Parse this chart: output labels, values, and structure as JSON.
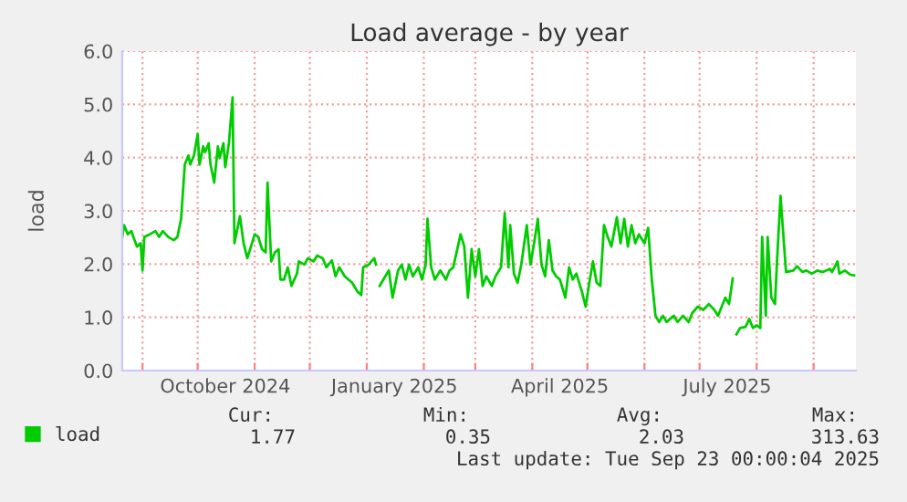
{
  "chart_data": {
    "type": "line",
    "title": "Load average - by year",
    "ylabel": "load",
    "x": [
      "2024-08-21",
      "2024-08-22",
      "2024-08-24",
      "2024-08-26",
      "2024-08-27",
      "2024-08-29",
      "2024-08-31",
      "2024-09-01",
      "2024-09-02",
      "2024-09-05",
      "2024-09-08",
      "2024-09-10",
      "2024-09-12",
      "2024-09-15",
      "2024-09-18",
      "2024-09-20",
      "2024-09-22",
      "2024-09-24",
      "2024-09-26",
      "2024-09-27",
      "2024-09-29",
      "2024-10-01",
      "2024-10-02",
      "2024-10-04",
      "2024-10-05",
      "2024-10-07",
      "2024-10-08",
      "2024-10-10",
      "2024-10-12",
      "2024-10-13",
      "2024-10-15",
      "2024-10-16",
      "2024-10-18",
      "2024-10-20",
      "2024-10-21",
      "2024-10-24",
      "2024-10-26",
      "2024-10-28",
      "2024-10-30",
      "2024-11-01",
      "2024-11-03",
      "2024-11-05",
      "2024-11-07",
      "2024-11-08",
      "2024-11-10",
      "2024-11-12",
      "2024-11-14",
      "2024-11-15",
      "2024-11-17",
      "2024-11-19",
      "2024-11-21",
      "2024-11-24",
      "2024-11-25",
      "2024-11-28",
      "2024-11-30",
      "2024-12-03",
      "2024-12-05",
      "2024-12-08",
      "2024-12-10",
      "2024-12-13",
      "2024-12-15",
      "2024-12-17",
      "2024-12-20",
      "2024-12-24",
      "2024-12-27",
      "2024-12-29",
      "2024-12-30",
      "2025-01-02",
      "2025-01-05",
      "2025-01-06",
      "2025-01-07",
      "2025-01-08",
      "2025-01-10",
      "2025-01-13",
      "2025-01-15",
      "2025-01-18",
      "2025-01-20",
      "2025-01-22",
      "2025-01-24",
      "2025-01-26",
      "2025-01-29",
      "2025-01-31",
      "2025-02-02",
      "2025-02-03",
      "2025-02-05",
      "2025-02-07",
      "2025-02-10",
      "2025-02-13",
      "2025-02-15",
      "2025-02-17",
      "2025-02-21",
      "2025-02-23",
      "2025-02-25",
      "2025-02-27",
      "2025-03-01",
      "2025-03-03",
      "2025-03-05",
      "2025-03-07",
      "2025-03-10",
      "2025-03-12",
      "2025-03-15",
      "2025-03-17",
      "2025-03-19",
      "2025-03-20",
      "2025-03-22",
      "2025-03-24",
      "2025-03-26",
      "2025-03-29",
      "2025-03-31",
      "2025-04-02",
      "2025-04-04",
      "2025-04-06",
      "2025-04-08",
      "2025-04-10",
      "2025-04-12",
      "2025-04-14",
      "2025-04-16",
      "2025-04-19",
      "2025-04-21",
      "2025-04-23",
      "2025-04-25",
      "2025-04-28",
      "2025-04-30",
      "2025-05-02",
      "2025-05-04",
      "2025-05-06",
      "2025-05-08",
      "2025-05-10",
      "2025-05-12",
      "2025-05-14",
      "2025-05-17",
      "2025-05-19",
      "2025-05-21",
      "2025-05-23",
      "2025-05-25",
      "2025-05-27",
      "2025-05-29",
      "2025-06-01",
      "2025-06-03",
      "2025-06-05",
      "2025-06-07",
      "2025-06-09",
      "2025-06-11",
      "2025-06-13",
      "2025-06-17",
      "2025-06-19",
      "2025-06-22",
      "2025-06-25",
      "2025-06-27",
      "2025-06-30",
      "2025-07-03",
      "2025-07-06",
      "2025-07-09",
      "2025-07-11",
      "2025-07-13",
      "2025-07-15",
      "2025-07-17",
      "2025-07-19",
      "2025-07-20",
      "2025-07-21",
      "2025-07-23",
      "2025-07-26",
      "2025-07-28",
      "2025-07-30",
      "2025-08-01",
      "2025-08-03",
      "2025-08-04",
      "2025-08-06",
      "2025-08-07",
      "2025-08-09",
      "2025-08-11",
      "2025-08-12",
      "2025-08-14",
      "2025-08-17",
      "2025-08-21",
      "2025-08-23",
      "2025-08-26",
      "2025-08-28",
      "2025-08-31",
      "2025-09-03",
      "2025-09-06",
      "2025-09-10",
      "2025-09-11",
      "2025-09-14",
      "2025-09-15",
      "2025-09-18",
      "2025-09-21",
      "2025-09-23"
    ],
    "series": [
      {
        "name": "load",
        "color": "#00cc00",
        "values": [
          2.51,
          2.73,
          2.56,
          2.62,
          2.51,
          2.33,
          2.39,
          1.88,
          2.51,
          2.56,
          2.62,
          2.51,
          2.62,
          2.51,
          2.45,
          2.51,
          2.85,
          3.87,
          4.04,
          3.87,
          4.04,
          4.44,
          3.87,
          4.21,
          4.1,
          4.27,
          3.87,
          3.53,
          4.21,
          3.99,
          4.27,
          3.82,
          4.27,
          5.13,
          2.39,
          2.9,
          2.39,
          2.11,
          2.33,
          2.56,
          2.51,
          2.28,
          2.22,
          3.53,
          2.05,
          2.22,
          2.28,
          1.71,
          1.71,
          1.94,
          1.59,
          1.82,
          2.05,
          1.99,
          2.11,
          2.05,
          2.16,
          2.11,
          1.94,
          2.07,
          1.77,
          1.94,
          1.77,
          1.65,
          1.48,
          1.42,
          1.94,
          1.99,
          2.11,
          1.99,
          null,
          1.59,
          1.71,
          1.88,
          1.37,
          1.88,
          1.99,
          1.71,
          1.99,
          1.77,
          1.94,
          1.71,
          1.99,
          2.85,
          1.94,
          1.71,
          1.88,
          1.71,
          1.88,
          1.94,
          2.56,
          2.33,
          1.37,
          2.28,
          1.77,
          2.28,
          1.59,
          1.77,
          1.59,
          1.77,
          1.94,
          2.96,
          1.94,
          2.73,
          1.82,
          1.65,
          1.99,
          2.73,
          1.99,
          2.39,
          2.85,
          1.99,
          1.77,
          2.45,
          1.88,
          1.77,
          1.71,
          1.37,
          1.94,
          1.71,
          1.82,
          1.48,
          1.2,
          1.65,
          2.05,
          1.65,
          1.59,
          2.73,
          2.51,
          2.33,
          2.88,
          2.39,
          2.85,
          2.33,
          2.73,
          2.39,
          2.56,
          2.39,
          2.68,
          1.71,
          1.03,
          0.91,
          1.03,
          0.91,
          1.03,
          0.91,
          1.03,
          0.91,
          1.08,
          1.2,
          1.14,
          1.25,
          1.14,
          1.03,
          1.2,
          1.37,
          1.25,
          1.73,
          null,
          0.68,
          0.8,
          0.82,
          0.97,
          0.8,
          0.85,
          0.8,
          2.51,
          1.03,
          2.51,
          1.37,
          1.25,
          1.99,
          3.28,
          1.85,
          1.88,
          1.96,
          1.85,
          1.88,
          1.82,
          1.88,
          1.85,
          1.91,
          1.85,
          2.05,
          1.82,
          1.88,
          1.8,
          1.79
        ]
      }
    ],
    "xlim": [
      "2024-08-21",
      "2025-09-24"
    ],
    "xticks": [
      {
        "value": "2024-09-01",
        "label": null
      },
      {
        "value": "2024-10-01",
        "label": null
      },
      {
        "value": "2024-10-16",
        "label": "October 2024"
      },
      {
        "value": "2024-11-01",
        "label": null
      },
      {
        "value": "2024-12-01",
        "label": null
      },
      {
        "value": "2025-01-01",
        "label": null
      },
      {
        "value": "2025-01-16",
        "label": "January 2025"
      },
      {
        "value": "2025-02-01",
        "label": null
      },
      {
        "value": "2025-03-01",
        "label": null
      },
      {
        "value": "2025-04-01",
        "label": null
      },
      {
        "value": "2025-04-16",
        "label": "April 2025"
      },
      {
        "value": "2025-05-01",
        "label": null
      },
      {
        "value": "2025-06-01",
        "label": null
      },
      {
        "value": "2025-07-01",
        "label": null
      },
      {
        "value": "2025-07-16",
        "label": "July 2025"
      },
      {
        "value": "2025-08-01",
        "label": null
      },
      {
        "value": "2025-09-01",
        "label": null
      }
    ],
    "ylim": [
      0,
      6
    ],
    "yticks": [
      {
        "value": 0,
        "label": "0.0"
      },
      {
        "value": 1,
        "label": "1.0"
      },
      {
        "value": 2,
        "label": "2.0"
      },
      {
        "value": 3,
        "label": "3.0"
      },
      {
        "value": 4,
        "label": "4.0"
      },
      {
        "value": 5,
        "label": "5.0"
      },
      {
        "value": 6,
        "label": "6.0"
      }
    ],
    "grid": true,
    "legend": "bottom left",
    "line_style": "solid",
    "marker": "none",
    "annotations": [
      "Cur:",
      "Min:",
      "Avg:",
      "Max:",
      "1.77",
      "0.35",
      "2.03",
      "313.63",
      "Last update: Tue Sep 23 00:00:04 2025"
    ]
  }
}
